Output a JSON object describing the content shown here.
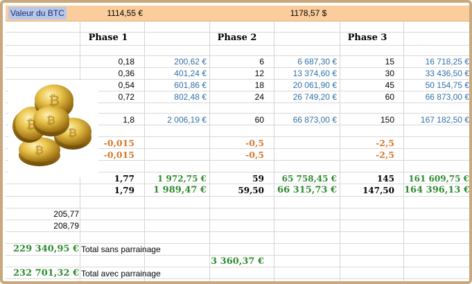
{
  "header": {
    "title": "Valeur du BTC",
    "btc_value_1": "1114,55 €",
    "btc_value_2": "1178,57 $"
  },
  "phases": {
    "phase1": "Phase 1",
    "phase2": "Phase 2",
    "phase3": "Phase 3"
  },
  "rows": {
    "r1": {
      "q1": "0,18",
      "v1": "200,62 €",
      "q2": "6",
      "v2": "6 687,30 €",
      "q3": "15",
      "v3": "16 718,25 €"
    },
    "r2": {
      "q1": "0,36",
      "v1": "401,24 €",
      "q2": "12",
      "v2": "13 374,60 €",
      "q3": "30",
      "v3": "33 436,50 €"
    },
    "r3": {
      "q1": "0,54",
      "v1": "601,86 €",
      "q2": "18",
      "v2": "20 061,90 €",
      "q3": "45",
      "v3": "50 154,75 €"
    },
    "r4": {
      "q1": "0,72",
      "v1": "802,48 €",
      "q2": "24",
      "v2": "26 749,20 €",
      "q3": "60",
      "v3": "66 873,00 €"
    },
    "total": {
      "q1": "1,8",
      "v1": "2 006,19 €",
      "q2": "60",
      "v2": "66 873,00 €",
      "q3": "150",
      "v3": "167 182,50 €"
    },
    "fee1": {
      "f1": "-0,015",
      "f2": "-0,5",
      "f3": "-2,5"
    },
    "fee2": {
      "f1": "-0,015",
      "f2": "-0,5",
      "f3": "-2,5"
    },
    "net1": {
      "q1": "1,77",
      "v1": "1 972,75 €",
      "q2": "59",
      "v2": "65 758,45 €",
      "q3": "145",
      "v3": "161 609,75 €"
    },
    "net2": {
      "q1": "1,79",
      "v1": "1 989,47 €",
      "q2": "59,50",
      "v2": "66 315,73 €",
      "q3": "147,50",
      "v3": "164 396,13 €"
    }
  },
  "extras": {
    "a": "205,77",
    "b": "208,79"
  },
  "summary": {
    "total_sans_value": "229 340,95 €",
    "total_sans_label": "Total sans parrainage",
    "middle_value": "3 360,37 €",
    "total_avec_value": "232 701,32 €",
    "total_avec_label": "Total avec parrainage"
  },
  "colors": {
    "header_bg": "#fbcd9c",
    "blue_values": "#3070a8",
    "green_bold": "#2e8b2e",
    "orange_fee": "#d27a2a",
    "frame": "#c8a87c"
  },
  "icons": {
    "coins": "bitcoin-coins-image"
  }
}
